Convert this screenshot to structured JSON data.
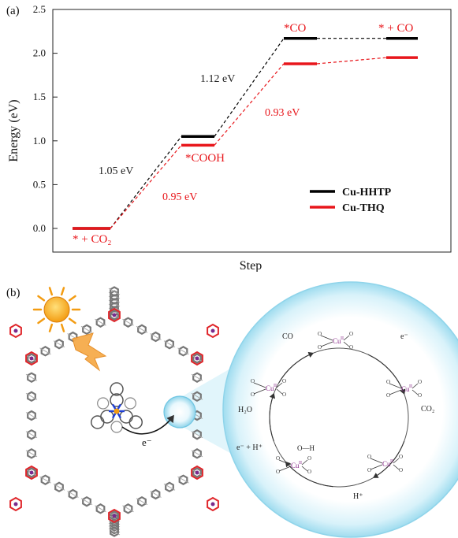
{
  "panel_a": {
    "label": "(a)",
    "ylabel": "Energy (eV)",
    "xlabel": "Step",
    "yticks": [
      "0.0",
      "0.5",
      "1.0",
      "1.5",
      "2.0",
      "2.5"
    ],
    "state_labels": [
      "* + CO₂",
      "*COOH",
      "*CO",
      "* + CO"
    ],
    "annotations": {
      "hhtp_step1": "1.05 eV",
      "hhtp_step2": "1.12 eV",
      "thq_step1": "0.95 eV",
      "thq_step2": "0.93 eV"
    },
    "legend": [
      "Cu-HHTP",
      "Cu-THQ"
    ]
  },
  "chart_data": {
    "type": "line",
    "xlabel": "Step",
    "ylabel": "Energy (eV)",
    "ylim": [
      0,
      2.5
    ],
    "categories": [
      "* + CO2",
      "*COOH",
      "*CO",
      "* + CO"
    ],
    "series": [
      {
        "name": "Cu-HHTP",
        "color": "#000000",
        "values": [
          0.0,
          1.05,
          2.17,
          2.17
        ]
      },
      {
        "name": "Cu-THQ",
        "color": "#e8161b",
        "values": [
          0.0,
          0.95,
          1.88,
          1.95
        ]
      }
    ],
    "grid": false,
    "legend": "bottom-right"
  },
  "panel_b": {
    "label": "(b)",
    "electron": "e⁻",
    "cycle": {
      "co": "CO",
      "e_top": "e⁻",
      "co2": "CO₂",
      "h_plus": "H⁺",
      "e_h": "e⁻ + H⁺",
      "h2o": "H₂O",
      "cu": "Cu",
      "cu_sup": "II",
      "cooh": "O—H"
    }
  },
  "colors": {
    "hhtp": "#000000",
    "thq": "#e8161b",
    "bubble": "#bfe9f6",
    "sun": "#f7a812",
    "bolt": "#f6ab4a"
  }
}
